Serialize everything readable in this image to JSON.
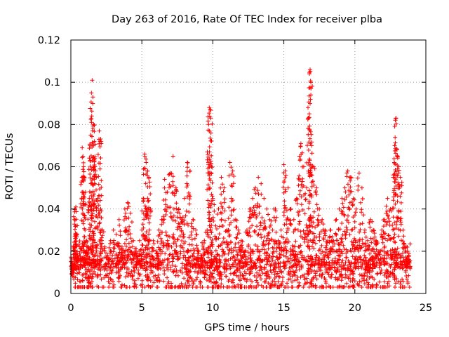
{
  "chart_data": {
    "type": "scatter",
    "title": "Day 263 of 2016, Rate Of TEC Index for receiver plba",
    "xlabel": "GPS time / hours",
    "ylabel": "ROTI / TECUs",
    "xlim": [
      0,
      25
    ],
    "ylim": [
      0,
      0.12
    ],
    "x_ticks": [
      0,
      5,
      10,
      15,
      20,
      25
    ],
    "x_tick_labels": [
      "0",
      "5",
      "10",
      "15",
      "20",
      "25"
    ],
    "y_ticks": [
      0,
      0.02,
      0.04,
      0.06,
      0.08,
      0.1,
      0.12
    ],
    "y_tick_labels": [
      "0",
      "0.02",
      "0.04",
      "0.06",
      "0.08",
      "0.1",
      "0.12"
    ],
    "grid": true,
    "marker": "+",
    "series": [
      {
        "name": "ROTI",
        "color": "#ff0000",
        "points": [
          [
            0.0,
            0.015
          ],
          [
            0.05,
            0.012
          ],
          [
            0.1,
            0.009
          ],
          [
            0.15,
            0.011
          ],
          [
            0.2,
            0.022
          ],
          [
            0.25,
            0.035
          ],
          [
            0.3,
            0.04
          ],
          [
            0.35,
            0.041
          ],
          [
            0.4,
            0.028
          ],
          [
            0.5,
            0.018
          ],
          [
            0.6,
            0.012
          ],
          [
            0.7,
            0.02
          ],
          [
            0.8,
            0.069
          ],
          [
            0.85,
            0.065
          ],
          [
            0.9,
            0.06
          ],
          [
            0.95,
            0.055
          ],
          [
            1.0,
            0.03
          ],
          [
            1.1,
            0.025
          ],
          [
            1.2,
            0.022
          ],
          [
            1.3,
            0.045
          ],
          [
            1.35,
            0.07
          ],
          [
            1.4,
            0.075
          ],
          [
            1.45,
            0.095
          ],
          [
            1.5,
            0.101
          ],
          [
            1.55,
            0.093
          ],
          [
            1.6,
            0.08
          ],
          [
            1.65,
            0.072
          ],
          [
            1.7,
            0.06
          ],
          [
            1.8,
            0.055
          ],
          [
            1.9,
            0.045
          ],
          [
            2.0,
            0.077
          ],
          [
            2.05,
            0.072
          ],
          [
            2.1,
            0.04
          ],
          [
            2.2,
            0.03
          ],
          [
            2.4,
            0.022
          ],
          [
            2.6,
            0.018
          ],
          [
            2.8,
            0.025
          ],
          [
            3.0,
            0.03
          ],
          [
            3.2,
            0.028
          ],
          [
            3.4,
            0.035
          ],
          [
            3.6,
            0.022
          ],
          [
            3.8,
            0.04
          ],
          [
            4.0,
            0.043
          ],
          [
            4.2,
            0.038
          ],
          [
            4.4,
            0.025
          ],
          [
            4.6,
            0.02
          ],
          [
            4.8,
            0.018
          ],
          [
            5.0,
            0.03
          ],
          [
            5.1,
            0.045
          ],
          [
            5.2,
            0.066
          ],
          [
            5.3,
            0.062
          ],
          [
            5.4,
            0.058
          ],
          [
            5.5,
            0.055
          ],
          [
            5.6,
            0.04
          ],
          [
            5.8,
            0.025
          ],
          [
            6.0,
            0.02
          ],
          [
            6.2,
            0.03
          ],
          [
            6.4,
            0.035
          ],
          [
            6.6,
            0.054
          ],
          [
            6.8,
            0.048
          ],
          [
            7.0,
            0.057
          ],
          [
            7.2,
            0.065
          ],
          [
            7.4,
            0.05
          ],
          [
            7.6,
            0.04
          ],
          [
            7.8,
            0.035
          ],
          [
            8.0,
            0.045
          ],
          [
            8.2,
            0.062
          ],
          [
            8.4,
            0.058
          ],
          [
            8.6,
            0.035
          ],
          [
            8.8,
            0.03
          ],
          [
            9.0,
            0.02
          ],
          [
            9.2,
            0.018
          ],
          [
            9.4,
            0.025
          ],
          [
            9.6,
            0.03
          ],
          [
            9.7,
            0.08
          ],
          [
            9.75,
            0.088
          ],
          [
            9.8,
            0.087
          ],
          [
            9.85,
            0.083
          ],
          [
            9.9,
            0.06
          ],
          [
            10.0,
            0.045
          ],
          [
            10.2,
            0.032
          ],
          [
            10.4,
            0.04
          ],
          [
            10.6,
            0.055
          ],
          [
            10.8,
            0.05
          ],
          [
            11.0,
            0.03
          ],
          [
            11.2,
            0.062
          ],
          [
            11.4,
            0.058
          ],
          [
            11.6,
            0.035
          ],
          [
            11.8,
            0.03
          ],
          [
            12.0,
            0.025
          ],
          [
            12.2,
            0.02
          ],
          [
            12.4,
            0.03
          ],
          [
            12.6,
            0.04
          ],
          [
            12.8,
            0.045
          ],
          [
            13.0,
            0.05
          ],
          [
            13.2,
            0.055
          ],
          [
            13.4,
            0.052
          ],
          [
            13.6,
            0.045
          ],
          [
            13.8,
            0.04
          ],
          [
            14.0,
            0.035
          ],
          [
            14.2,
            0.03
          ],
          [
            14.4,
            0.04
          ],
          [
            14.6,
            0.025
          ],
          [
            14.8,
            0.03
          ],
          [
            15.0,
            0.061
          ],
          [
            15.1,
            0.058
          ],
          [
            15.3,
            0.05
          ],
          [
            15.5,
            0.04
          ],
          [
            15.7,
            0.035
          ],
          [
            15.9,
            0.045
          ],
          [
            16.1,
            0.065
          ],
          [
            16.2,
            0.071
          ],
          [
            16.4,
            0.06
          ],
          [
            16.6,
            0.05
          ],
          [
            16.7,
            0.088
          ],
          [
            16.8,
            0.104
          ],
          [
            16.85,
            0.106
          ],
          [
            16.9,
            0.1
          ],
          [
            16.95,
            0.07
          ],
          [
            17.1,
            0.06
          ],
          [
            17.3,
            0.05
          ],
          [
            17.5,
            0.04
          ],
          [
            17.7,
            0.035
          ],
          [
            17.9,
            0.03
          ],
          [
            18.1,
            0.025
          ],
          [
            18.3,
            0.03
          ],
          [
            18.5,
            0.025
          ],
          [
            18.7,
            0.035
          ],
          [
            18.9,
            0.04
          ],
          [
            19.1,
            0.045
          ],
          [
            19.3,
            0.05
          ],
          [
            19.5,
            0.058
          ],
          [
            19.7,
            0.055
          ],
          [
            19.9,
            0.045
          ],
          [
            20.1,
            0.04
          ],
          [
            20.3,
            0.057
          ],
          [
            20.5,
            0.05
          ],
          [
            20.7,
            0.03
          ],
          [
            20.9,
            0.025
          ],
          [
            21.1,
            0.035
          ],
          [
            21.3,
            0.03
          ],
          [
            21.5,
            0.025
          ],
          [
            21.7,
            0.02
          ],
          [
            21.9,
            0.03
          ],
          [
            22.1,
            0.035
          ],
          [
            22.3,
            0.045
          ],
          [
            22.5,
            0.04
          ],
          [
            22.7,
            0.055
          ],
          [
            22.8,
            0.07
          ],
          [
            22.85,
            0.082
          ],
          [
            22.9,
            0.083
          ],
          [
            23.0,
            0.065
          ],
          [
            23.1,
            0.06
          ],
          [
            23.2,
            0.055
          ],
          [
            23.4,
            0.03
          ],
          [
            23.6,
            0.022
          ],
          [
            23.7,
            0.02
          ],
          [
            23.8,
            0.018
          ]
        ],
        "baseline_band": {
          "x_range": [
            0,
            23.9
          ],
          "dense_range": [
            0.003,
            0.025
          ],
          "typical": 0.011
        }
      }
    ]
  }
}
